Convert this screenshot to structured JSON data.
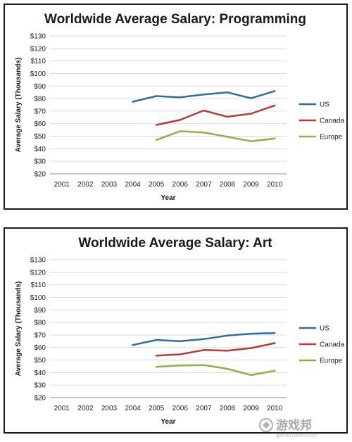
{
  "chart_data": [
    {
      "type": "line",
      "title": "Worldwide Average Salary: Programming",
      "xlabel": "Year",
      "ylabel": "Average Salary (Thousands)",
      "x": [
        "2001",
        "2002",
        "2003",
        "2004",
        "2005",
        "2006",
        "2007",
        "2008",
        "2009",
        "2010"
      ],
      "ylim": [
        20,
        130
      ],
      "ytick_labels": [
        "$130",
        "$120",
        "$110",
        "$100",
        "$90",
        "$80",
        "$70",
        "$60",
        "$50",
        "$40",
        "$30",
        "$20"
      ],
      "grid": true,
      "legend": "right",
      "series": [
        {
          "name": "US",
          "color": "#2e6da4",
          "values": [
            null,
            null,
            null,
            77.5,
            82,
            81,
            83.3,
            85,
            80.3,
            86
          ]
        },
        {
          "name": "Canada",
          "color": "#b83a35",
          "values": [
            null,
            null,
            null,
            null,
            59,
            63,
            70.5,
            65.5,
            68,
            74.5
          ]
        },
        {
          "name": "Europe",
          "color": "#8ab33f",
          "values": [
            null,
            null,
            null,
            null,
            47,
            54,
            53,
            49.5,
            46,
            48.2
          ]
        }
      ]
    },
    {
      "type": "line",
      "title": "Worldwide Average Salary: Art",
      "xlabel": "Year",
      "ylabel": "Average Salary (Thousands)",
      "x": [
        "2001",
        "2002",
        "2003",
        "2004",
        "2005",
        "2006",
        "2007",
        "2008",
        "2009",
        "2010"
      ],
      "ylim": [
        20,
        130
      ],
      "ytick_labels": [
        "$130",
        "$120",
        "$110",
        "$100",
        "$90",
        "$80",
        "$70",
        "$60",
        "$50",
        "$40",
        "$30",
        "$20"
      ],
      "grid": true,
      "legend": "right",
      "series": [
        {
          "name": "US",
          "color": "#2e6da4",
          "values": [
            null,
            null,
            null,
            62,
            66,
            65,
            66.7,
            69.5,
            71,
            71.5
          ]
        },
        {
          "name": "Canada",
          "color": "#b83a35",
          "values": [
            null,
            null,
            null,
            null,
            53.5,
            54.5,
            58,
            57.5,
            59.5,
            63.5
          ]
        },
        {
          "name": "Europe",
          "color": "#8ab33f",
          "values": [
            null,
            null,
            null,
            null,
            44.5,
            45.7,
            46,
            43,
            38,
            41.5
          ]
        }
      ]
    }
  ],
  "watermark": {
    "text": "游戏邦",
    "url": "gamerboom.com"
  }
}
